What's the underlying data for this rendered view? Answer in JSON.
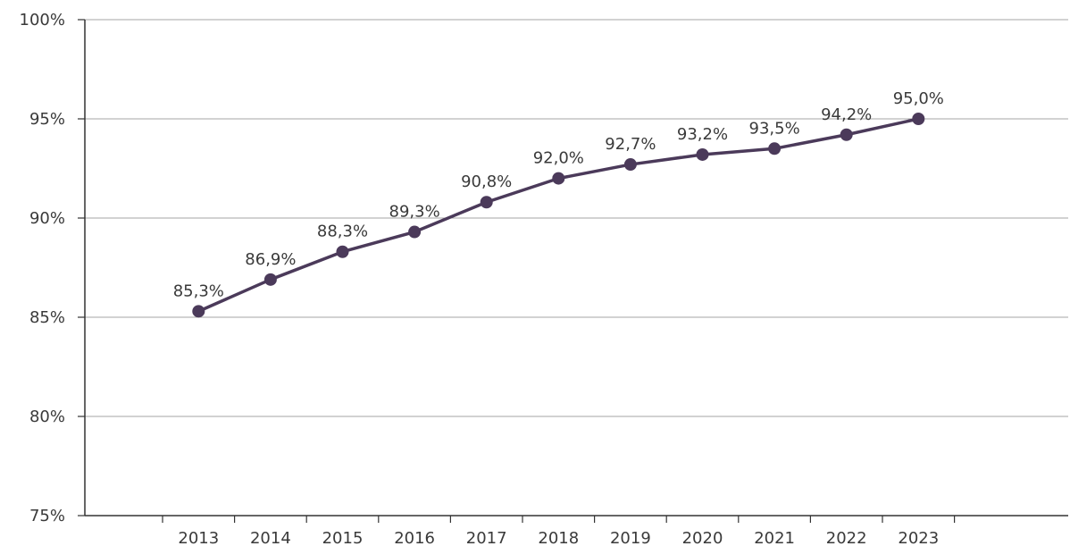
{
  "chart_data": {
    "type": "line",
    "title": "",
    "xlabel": "",
    "ylabel": "",
    "categories": [
      "2013",
      "2014",
      "2015",
      "2016",
      "2017",
      "2018",
      "2019",
      "2020",
      "2021",
      "2022",
      "2023"
    ],
    "series": [
      {
        "values": [
          85.3,
          86.9,
          88.3,
          89.3,
          90.8,
          92.0,
          92.7,
          93.2,
          93.5,
          94.2,
          95.0
        ],
        "data_labels": [
          "85,3%",
          "86,9%",
          "88,3%",
          "89,3%",
          "90,8%",
          "92,0%",
          "92,7%",
          "93,2%",
          "93,5%",
          "94,2%",
          "95,0%"
        ]
      }
    ],
    "ylim": [
      75,
      100
    ],
    "y_ticks": [
      75,
      80,
      85,
      90,
      95,
      100
    ],
    "y_tick_labels": [
      "75%",
      "80%",
      "85%",
      "90%",
      "95%",
      "100%"
    ],
    "grid": true,
    "legend": "none",
    "colors": {
      "line": "#4b3a5a",
      "marker": "#4b3a5a",
      "grid": "#a6a6a6",
      "axis": "#333333",
      "text": "#3a3a3a"
    }
  }
}
